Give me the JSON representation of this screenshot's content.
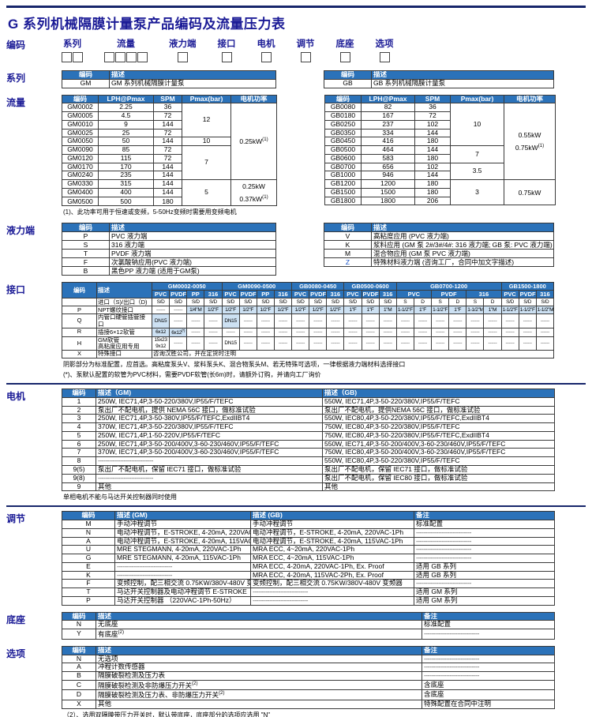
{
  "title": "G 系列机械隔膜计量泵产品编码及流量压力表",
  "dash_short": "------",
  "dash_long": "------------------------------",
  "colors": {
    "header_bg": "#2b72b9",
    "shade": "#cde1f3",
    "title_navy": "#1b1b96",
    "rule_navy": "#17266b",
    "link_blue": "#1550c8"
  },
  "coding": {
    "label": "编码",
    "fields": [
      {
        "label": "系列",
        "boxes": 2
      },
      {
        "label": "流量",
        "boxes": 4
      },
      {
        "label": "液力端",
        "boxes": 1
      },
      {
        "label": "接口",
        "boxes": 1
      },
      {
        "label": "电机",
        "boxes": 1
      },
      {
        "label": "调节",
        "boxes": 1
      },
      {
        "label": "底座",
        "boxes": 1
      },
      {
        "label": "选项",
        "boxes": 1
      }
    ]
  },
  "series": {
    "label": "系列",
    "headers": [
      "编码",
      "描述"
    ],
    "gm": {
      "code": "GM",
      "desc": "GM 系列机械隔膜计量泵"
    },
    "gb": {
      "code": "GB",
      "desc": "GB 系列机械隔膜计量泵"
    }
  },
  "flow": {
    "label": "流量",
    "headers": [
      "编码",
      "LPH@Pmax",
      "SPM",
      "Pmax(bar)",
      "电机功率"
    ],
    "gm": {
      "rows": [
        [
          "GM0002",
          "2.25",
          "36"
        ],
        [
          "GM0005",
          "4.5",
          "72"
        ],
        [
          "GM0010",
          "9",
          "144"
        ],
        [
          "GM0025",
          "25",
          "72"
        ],
        [
          "GM0050",
          "50",
          "144"
        ],
        [
          "GM0090",
          "85",
          "72"
        ],
        [
          "GM0120",
          "115",
          "72"
        ],
        [
          "GM0170",
          "170",
          "144"
        ],
        [
          "GM0240",
          "235",
          "144"
        ],
        [
          "GM0330",
          "315",
          "144"
        ],
        [
          "GM0400",
          "400",
          "144"
        ],
        [
          "GM0500",
          "500",
          "180"
        ]
      ],
      "pmax_spans": [
        {
          "value": "12",
          "rows": 4
        },
        {
          "value": "10",
          "rows": 1
        },
        {
          "value": "7",
          "rows": 4
        },
        {
          "value": "5",
          "rows": 3
        }
      ],
      "power_spans": [
        {
          "value": "0.25kW^(1)",
          "rows": 9
        },
        {
          "value": "0.25kW\n0.37kW^(1)",
          "rows": 3
        }
      ]
    },
    "gb": {
      "rows": [
        [
          "GB0080",
          "82",
          "36"
        ],
        [
          "GB0180",
          "167",
          "72"
        ],
        [
          "GB0250",
          "237",
          "102"
        ],
        [
          "GB0350",
          "334",
          "144"
        ],
        [
          "GB0450",
          "416",
          "180"
        ],
        [
          "GB0500",
          "464",
          "144"
        ],
        [
          "GB0600",
          "583",
          "180"
        ],
        [
          "GB0700",
          "656",
          "102"
        ],
        [
          "GB1000",
          "946",
          "144"
        ],
        [
          "GB1200",
          "1200",
          "180"
        ],
        [
          "GB1500",
          "1500",
          "180"
        ],
        [
          "GB1800",
          "1800",
          "206"
        ]
      ],
      "pmax_spans": [
        {
          "value": "10",
          "rows": 5
        },
        {
          "value": "7",
          "rows": 2
        },
        {
          "value": "3.5",
          "rows": 2
        },
        {
          "value": "3",
          "rows": 3
        }
      ],
      "power_spans": [
        {
          "value": "0.55kW\n0.75kW^(1)",
          "rows": 9
        },
        {
          "value": "0.75kW",
          "rows": 3
        }
      ]
    },
    "footnote": "(1)、此功率可用于恒速或变频，5-50Hz变频时需要用变频电机"
  },
  "hydraulic": {
    "label": "液力端",
    "headers": [
      "编码",
      "描述"
    ],
    "left_rows": [
      {
        "code": "P",
        "desc": "PVC 液力端"
      },
      {
        "code": "S",
        "desc": "316 液力端"
      },
      {
        "code": "T",
        "desc": "PVDF 液力端"
      },
      {
        "code": "F",
        "desc": "次氯酸钠应用(PVC 液力端)"
      },
      {
        "code": "B",
        "desc": "黑色PP 液力端 (适用于GM泵)"
      }
    ],
    "right_rows": [
      {
        "code": "V",
        "desc": "高粘度应用 (PVC 液力端)"
      },
      {
        "code": "K",
        "desc": "浆料应用 (GM 泵 2#/3#/4#: 316 液力端; GB 泵: PVC 液力端)"
      },
      {
        "code": "M",
        "desc": "混合物应用 (GM 泵 PVC 液力端)"
      },
      {
        "code": "Z",
        "desc": "特殊材料液力端 (咨询工厂，合同中加文字描述)",
        "blue": true
      }
    ]
  },
  "interface": {
    "label": "接口",
    "code_header": "编码",
    "desc_header": "描述",
    "inlet_outlet": "进口（S)/出口（D)",
    "groups": [
      {
        "title": "GM0002-0050",
        "materials": [
          "PVC",
          "PVDF",
          "PP",
          "316"
        ],
        "sd": [
          "S/D",
          "S/D",
          "S/D",
          "S/D"
        ]
      },
      {
        "title": "GM0090-0500",
        "materials": [
          "PVC",
          "PVDF",
          "PP",
          "316"
        ],
        "sd": [
          "S/D",
          "S/D",
          "S/D",
          "S/D"
        ]
      },
      {
        "title": "GB0080-0450",
        "materials": [
          "PVC",
          "PVDF",
          "316"
        ],
        "sd": [
          "S/D",
          "S/D",
          "S/D"
        ]
      },
      {
        "title": "GB0500-0600",
        "materials": [
          "PVC",
          "PVDF",
          "316"
        ],
        "sd": [
          "S/D",
          "S/D",
          "S/D"
        ]
      },
      {
        "title": "GB0700-1200",
        "materials": [
          {
            "name": "PVC",
            "span": 2
          },
          {
            "name": "PVDF",
            "span": 2
          },
          {
            "name": "316",
            "span": 2
          }
        ],
        "sd": [
          "S",
          "D",
          "S",
          "D",
          "S",
          "D"
        ]
      },
      {
        "title": "GB1500-1800",
        "materials": [
          "PVC",
          "PVDF",
          "316"
        ],
        "sd": [
          "S/D",
          "S/D",
          "S/D"
        ]
      }
    ],
    "rows": [
      {
        "code": "P",
        "desc": "NPT螺纹接口",
        "shade": true,
        "cells": [
          "",
          "",
          "1/4\"M",
          "1/2\"F",
          "1/2\"F",
          "1/2\"F",
          "1/2\"F",
          "1/2\"F",
          "1/2\"F",
          "1/2\"F",
          "1/2\"F",
          "1\"F",
          "1\"F",
          "1\"M",
          "1-1/2\"F",
          "1\"F",
          "1-1/2\"F",
          "1\"F",
          "1-1/2\"M",
          "1\"M",
          "1-1/2\"F",
          "1-1/2\"F",
          "1-1/2\"M"
        ]
      },
      {
        "code": "Q",
        "desc": "内管口硬管插管接口",
        "shade": true,
        "cells": [
          "DN15",
          "",
          "",
          "",
          "DN15",
          "",
          "",
          "",
          "",
          "",
          "",
          "",
          "",
          "",
          "",
          "",
          "",
          "",
          "",
          "",
          "",
          "",
          ""
        ]
      },
      {
        "code": "R",
        "desc": "插接6×12软管",
        "shade": true,
        "cells": [
          "6x12",
          "6x12^(*)",
          "",
          "",
          "",
          "",
          "",
          "",
          "",
          "",
          "",
          "",
          "",
          "",
          "",
          "",
          "",
          "",
          "",
          "",
          "",
          "",
          ""
        ]
      },
      {
        "code": "H",
        "desc": "GM软管\n高粘度应用专用",
        "shade": false,
        "cells": [
          "15x23\n9x12",
          "",
          "",
          "",
          "DN15",
          "",
          "",
          "",
          "",
          "",
          "",
          "",
          "",
          "",
          "",
          "",
          "",
          "",
          "",
          "",
          "",
          "",
          ""
        ]
      }
    ],
    "special_row": {
      "code": "X",
      "desc": "特殊接口",
      "note": "咨询汉胜公司，并在定货时注明"
    },
    "footnotes": [
      "阴影部分为标准配置，应首选。高粘度泵头V、浆料泵头K、混合物泵头M、若无特殊可选项，一律根据液力端材料选择接口",
      "(*)、泵默认配置的软管为PVC材料，需要PVDF软管(长6m)时，请额外订购，并请向工厂询价"
    ]
  },
  "motor": {
    "label": "电机",
    "headers": [
      "编码",
      "描述（GM)",
      "描述（GB)"
    ],
    "rows": [
      {
        "code": "1",
        "gm": "250W, IEC71,4P,3-50-220/380V,IP55/F/TEFC",
        "gb": "550W, IEC71,4P,3-50-220/380V,IP55/F/TEFC"
      },
      {
        "code": "2",
        "gm": "泵出厂不配电机，提供 NEMA 56C 接口，做标准试验",
        "gb": "泵出厂不配电机，提供NEMA 56C 接口，做标准试验"
      },
      {
        "code": "3",
        "gm": "250W, IEC71,4P,3-50-380V,IP55/F/TEFC,ExdIIBT4",
        "gb": "550W, IEC80,4P,3-50-220/380V,IP55/F/TEFC,ExdIIBT4"
      },
      {
        "code": "4",
        "gm": "370W, IEC71,4P,3-50-220/380V,IP55/F/TEFC",
        "gb": "750W, IEC80,4P,3-50-220/380V,IP55/F/TEFC"
      },
      {
        "code": "5",
        "gm": "250W, IEC71,4P,1-50-220V,IP55/F/TEFC",
        "gb": "750W, IEC80,4P,3-50-220/380V,IP55/F/TEFC,ExdIIBT4"
      },
      {
        "code": "6",
        "gm": "250W, IEC71,4P,3-50-200/400V,3-60-230/460V,IP55/F/TEFC",
        "gb": "550W, IEC71,4P,3-50-200/400V,3-60-230/460V,IP55/F/TEFC"
      },
      {
        "code": "7",
        "gm": "370W, IEC71,4P,3-50-200/400V,3-60-230/460V,IP55/F/TEFC",
        "gb": "750W, IEC80,4P,3-50-200/400V,3-60-230/460V,IP55/F/TEFC"
      },
      {
        "code": "8",
        "gm": "",
        "gb": "550W, IEC80,4P,3-50-220/380V,IP55/F/TEFC"
      },
      {
        "code": "9(5)",
        "gm": "泵出厂不配电机，保留 IEC71 接口，做标准试验",
        "gb": "泵出厂不配电机，保留 IEC71 接口，做标准试验"
      },
      {
        "code": "9(8)",
        "gm": "",
        "gb": "泵出厂不配电机，保留 IEC80 接口，做标准试验"
      },
      {
        "code": "9",
        "gm": "其他",
        "gb": "其他"
      }
    ],
    "footnote": "单相电机不能与马达开关控制器同时使用"
  },
  "adjust": {
    "label": "调节",
    "headers": [
      "编码",
      "描述 (GM)",
      "描述 (GB)",
      "备注"
    ],
    "rows": [
      {
        "code": "M",
        "gm": "手动冲程调节",
        "gb": "手动冲程调节",
        "note": "标准配置"
      },
      {
        "code": "N",
        "gm": "电动冲程调节，E-STROKE, 4-20mA, 220VAC-1Ph",
        "gb": "电动冲程调节，E-STROKE, 4-20mA, 220VAC-1Ph",
        "note": ""
      },
      {
        "code": "A",
        "gm": "电动冲程调节，E-STROKE, 4-20mA, 115VAC-1Ph",
        "gb": "电动冲程调节，E-STROKE, 4-20mA, 115VAC-1Ph",
        "note": ""
      },
      {
        "code": "U",
        "gm": "MRE STEGMANN, 4-20mA, 220VAC-1Ph",
        "gb": "MRA ECC, 4~20mA, 220VAC-1Ph",
        "note": ""
      },
      {
        "code": "G",
        "gm": "MRE STEGMANN, 4-20mA, 115VAC-1Ph",
        "gb": "MRA ECC, 4~20mA, 115VAC-1Ph",
        "note": ""
      },
      {
        "code": "E",
        "gm": "",
        "gb": "MRA ECC, 4-20mA, 220VAC-1Ph, Ex. Proof",
        "note": "适用 GB 系列"
      },
      {
        "code": "K",
        "gm": "",
        "gb": "MRA ECC, 4-20mA, 115VAC-2Ph, Ex. Proof",
        "note": "适用 GB 系列"
      },
      {
        "code": "F",
        "gm": "变频控制，配三相交流 0.75KW/380V-480V 变频器",
        "gb": "变频控制，配三相交流 0.75KW/380V-480V 变频器",
        "note": ""
      },
      {
        "code": "T",
        "gm": "马达开关控制器及电动冲程调节 E-STROKE",
        "gb": "",
        "note": "适用 GM 系列"
      },
      {
        "code": "P",
        "gm": "马达开关控制器 （220VAC-1Ph-50Hz）",
        "gb": "",
        "note": "适用 GM 系列"
      }
    ]
  },
  "base": {
    "label": "底座",
    "headers": [
      "编码",
      "描述",
      "备注"
    ],
    "rows": [
      {
        "code": "N",
        "desc": "无底座",
        "note": "标准配置"
      },
      {
        "code": "Y",
        "desc": "有底座^(2)",
        "note": ""
      }
    ]
  },
  "options": {
    "label": "选项",
    "headers": [
      "编码",
      "描述",
      "备注"
    ],
    "rows": [
      {
        "code": "N",
        "desc": "无选项",
        "note": ""
      },
      {
        "code": "A",
        "desc": "冲程计数传感器",
        "note": ""
      },
      {
        "code": "B",
        "desc": "隔膜破裂检测及压力表",
        "note": ""
      },
      {
        "code": "C",
        "desc": "隔膜破裂检测及非防爆压力开关^(2)",
        "note": "含底座"
      },
      {
        "code": "D",
        "desc": "隔膜破裂检测及压力表、非防爆压力开关^(2)",
        "note": "含底座"
      },
      {
        "code": "X",
        "desc": "其他",
        "note": "特殊配置在合同中注明"
      }
    ]
  },
  "bottom_footnote": "（2）、选用双隔膜带压力开关时，默认带底座，底座部分的选项应选用 \"N\""
}
